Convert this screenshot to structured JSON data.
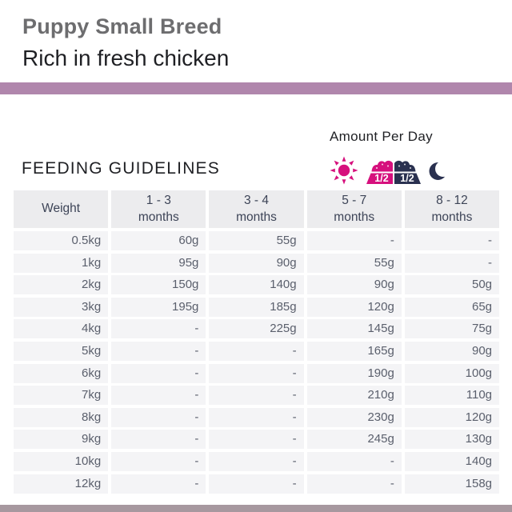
{
  "header": {
    "title": "Puppy Small Breed",
    "subtitle": "Rich in fresh chicken"
  },
  "amount_per_day": {
    "label": "Amount Per Day",
    "day_half": "1/2",
    "night_half": "1/2"
  },
  "guidelines": {
    "heading": "FEEDING GUIDELINES"
  },
  "table": {
    "columns": [
      {
        "top": "Weight",
        "bottom": ""
      },
      {
        "top": "1 - 3",
        "bottom": "months"
      },
      {
        "top": "3 - 4",
        "bottom": "months"
      },
      {
        "top": "5 - 7",
        "bottom": "months"
      },
      {
        "top": "8 - 12",
        "bottom": "months"
      }
    ],
    "rows": [
      [
        "0.5kg",
        "60g",
        "55g",
        "-",
        "-"
      ],
      [
        "1kg",
        "95g",
        "90g",
        "55g",
        "-"
      ],
      [
        "2kg",
        "150g",
        "140g",
        "90g",
        "50g"
      ],
      [
        "3kg",
        "195g",
        "185g",
        "120g",
        "65g"
      ],
      [
        "4kg",
        "-",
        "225g",
        "145g",
        "75g"
      ],
      [
        "5kg",
        "-",
        "-",
        "165g",
        "90g"
      ],
      [
        "6kg",
        "-",
        "-",
        "190g",
        "100g"
      ],
      [
        "7kg",
        "-",
        "-",
        "210g",
        "110g"
      ],
      [
        "8kg",
        "-",
        "-",
        "230g",
        "120g"
      ],
      [
        "9kg",
        "-",
        "-",
        "245g",
        "130g"
      ],
      [
        "10kg",
        "-",
        "-",
        "-",
        "140g"
      ],
      [
        "12kg",
        "-",
        "-",
        "-",
        "158g"
      ]
    ]
  },
  "colors": {
    "accent_bar": "#b086ac",
    "accent_bar_bottom": "#a7989f",
    "pink": "#d6107d",
    "navy": "#2a3150",
    "title_gray": "#6d6d6f",
    "text_dark": "#1f2024",
    "header_cell_bg": "#ececee",
    "cell_bg": "#f4f4f6",
    "header_cell_text": "#3d4457",
    "cell_text": "#5a5f6c"
  },
  "chart_data": {
    "type": "table",
    "title": "FEEDING GUIDELINES",
    "subtitle": "Amount Per Day (half in morning, half in evening)",
    "columns": [
      "Weight",
      "1 - 3 months",
      "3 - 4 months",
      "5 - 7 months",
      "8 - 12 months"
    ],
    "rows": [
      [
        "0.5kg",
        "60g",
        "55g",
        "-",
        "-"
      ],
      [
        "1kg",
        "95g",
        "90g",
        "55g",
        "-"
      ],
      [
        "2kg",
        "150g",
        "140g",
        "90g",
        "50g"
      ],
      [
        "3kg",
        "195g",
        "185g",
        "120g",
        "65g"
      ],
      [
        "4kg",
        "-",
        "225g",
        "145g",
        "75g"
      ],
      [
        "5kg",
        "-",
        "-",
        "165g",
        "90g"
      ],
      [
        "6kg",
        "-",
        "-",
        "190g",
        "100g"
      ],
      [
        "7kg",
        "-",
        "-",
        "210g",
        "110g"
      ],
      [
        "8kg",
        "-",
        "-",
        "230g",
        "120g"
      ],
      [
        "9kg",
        "-",
        "-",
        "245g",
        "130g"
      ],
      [
        "10kg",
        "-",
        "-",
        "-",
        "140g"
      ],
      [
        "12kg",
        "-",
        "-",
        "-",
        "158g"
      ]
    ]
  }
}
